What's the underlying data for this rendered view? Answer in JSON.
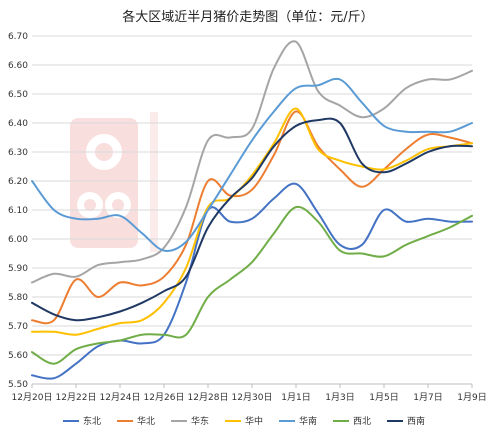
{
  "chart_data": {
    "type": "line",
    "title": "各大区域近半月猪价走势图（单位：元/斤）",
    "xlabel": "",
    "ylabel": "",
    "ylim": [
      5.5,
      6.7
    ],
    "ytick_step": 0.1,
    "grid": "horizontal",
    "legend_position": "bottom",
    "x": [
      "12月20日",
      "12月21日",
      "12月22日",
      "12月23日",
      "12月24日",
      "12月25日",
      "12月26日",
      "12月27日",
      "12月28日",
      "12月29日",
      "12月30日",
      "12月31日",
      "1月1日",
      "1月2日",
      "1月3日",
      "1月4日",
      "1月5日",
      "1月6日",
      "1月7日",
      "1月8日",
      "1月9日"
    ],
    "xtick_labels": [
      "12月20日",
      "12月22日",
      "12月24日",
      "12月26日",
      "12月28日",
      "12月30日",
      "1月1日",
      "1月3日",
      "1月5日",
      "1月7日",
      "1月9日"
    ],
    "series": [
      {
        "name": "东北",
        "color": "#4472c4",
        "values": [
          5.53,
          5.52,
          5.57,
          5.63,
          5.65,
          5.64,
          5.67,
          5.85,
          6.1,
          6.06,
          6.07,
          6.14,
          6.19,
          6.09,
          5.98,
          5.98,
          6.1,
          6.06,
          6.07,
          6.06,
          6.06
        ]
      },
      {
        "name": "华北",
        "color": "#ed7d31",
        "values": [
          5.72,
          5.72,
          5.86,
          5.8,
          5.85,
          5.84,
          5.87,
          5.98,
          6.2,
          6.15,
          6.17,
          6.29,
          6.44,
          6.32,
          6.24,
          6.18,
          6.24,
          6.31,
          6.36,
          6.35,
          6.33
        ]
      },
      {
        "name": "华东",
        "color": "#a5a5a5",
        "values": [
          5.85,
          5.88,
          5.87,
          5.91,
          5.92,
          5.93,
          5.97,
          6.11,
          6.34,
          6.35,
          6.38,
          6.59,
          6.68,
          6.51,
          6.46,
          6.42,
          6.45,
          6.52,
          6.55,
          6.55,
          6.58
        ]
      },
      {
        "name": "华中",
        "color": "#ffc000",
        "values": [
          5.68,
          5.68,
          5.67,
          5.69,
          5.71,
          5.72,
          5.78,
          5.9,
          6.11,
          6.14,
          6.22,
          6.33,
          6.45,
          6.31,
          6.27,
          6.25,
          6.24,
          6.27,
          6.31,
          6.32,
          6.33
        ]
      },
      {
        "name": "华南",
        "color": "#5b9bd5",
        "values": [
          6.2,
          6.1,
          6.07,
          6.07,
          6.08,
          6.02,
          5.96,
          5.99,
          6.1,
          6.22,
          6.34,
          6.44,
          6.52,
          6.53,
          6.55,
          6.47,
          6.39,
          6.37,
          6.37,
          6.37,
          6.4
        ]
      },
      {
        "name": "西北",
        "color": "#70ad47",
        "values": [
          5.61,
          5.57,
          5.62,
          5.64,
          5.65,
          5.67,
          5.67,
          5.67,
          5.8,
          5.86,
          5.92,
          6.02,
          6.11,
          6.06,
          5.96,
          5.95,
          5.94,
          5.98,
          6.01,
          6.04,
          6.08
        ]
      },
      {
        "name": "西南",
        "color": "#1f3864",
        "values": [
          5.78,
          5.74,
          5.72,
          5.73,
          5.75,
          5.78,
          5.82,
          5.87,
          6.04,
          6.14,
          6.21,
          6.32,
          6.39,
          6.41,
          6.4,
          6.26,
          6.23,
          6.26,
          6.3,
          6.32,
          6.32
        ]
      }
    ]
  }
}
